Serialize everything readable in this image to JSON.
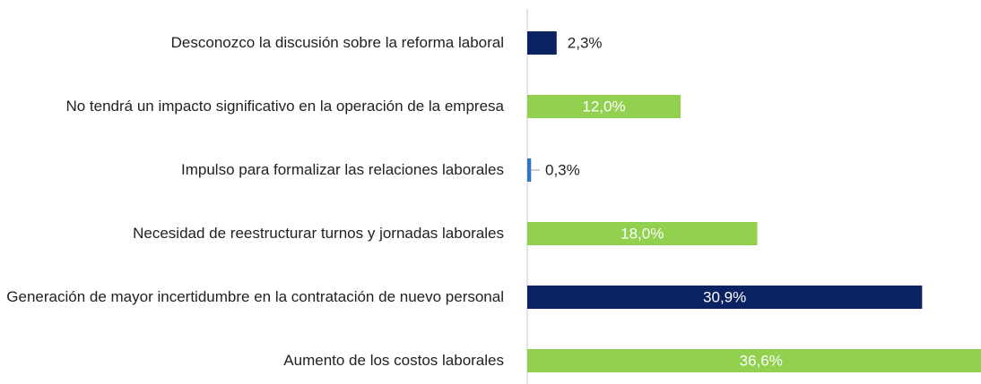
{
  "chart_data": {
    "type": "bar",
    "orientation": "horizontal",
    "categories": [
      "Desconozco la discusión sobre la reforma laboral",
      "No tendrá un impacto significativo en la operación de la empresa",
      "Impulso para formalizar las relaciones laborales",
      "Necesidad de reestructurar turnos y jornadas laborales",
      "Generación de mayor incertidumbre en la contratación de nuevo personal",
      "Aumento de los costos laborales"
    ],
    "values": [
      2.3,
      12.0,
      0.3,
      18.0,
      30.9,
      36.6
    ],
    "value_labels": [
      "2,3%",
      "12,0%",
      "0,3%",
      "18,0%",
      "30,9%",
      "36,6%"
    ],
    "colors": [
      "#0b2262",
      "#92d050",
      "#2e75c8",
      "#92d050",
      "#0b2262",
      "#92d050"
    ]
  }
}
